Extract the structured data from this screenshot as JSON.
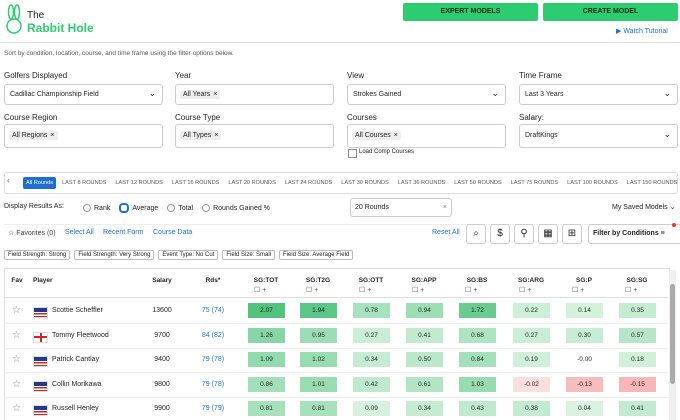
{
  "header": {
    "logo_top": "The",
    "logo_bottom": "Rabbit Hole",
    "buttons": [
      "EXPERT MODELS",
      "CREATE MODEL"
    ],
    "tutorial": "Watch Tutorial"
  },
  "description": "Sort by condition, location, course, and time frame using the filter options below.",
  "filters": [
    {
      "label": "Golfers Displayed",
      "value": "Cadillac Championship Field",
      "kind": "select"
    },
    {
      "label": "Year",
      "value": "All Years",
      "kind": "chip"
    },
    {
      "label": "View",
      "value": "Strokes Gained",
      "kind": "select"
    },
    {
      "label": "Time Frame",
      "value": "Last 3 Years",
      "kind": "select"
    },
    {
      "label": "Course Region",
      "value": "All Regions",
      "kind": "chip"
    },
    {
      "label": "Course Type",
      "value": "All Types",
      "kind": "chip"
    },
    {
      "label": "Courses",
      "value": "All Courses",
      "kind": "chip"
    },
    {
      "label": "Salary:",
      "value": "DraftKings",
      "kind": "select"
    }
  ],
  "load_comp": "Load Comp Courses",
  "round_tabs": [
    {
      "label": "All Rounds",
      "active": true
    },
    {
      "label": "LAST 8 ROUNDS",
      "active": false
    },
    {
      "label": "LAST 12 ROUNDS",
      "active": false
    },
    {
      "label": "LAST 16 ROUNDS",
      "active": false
    },
    {
      "label": "LAST 20 ROUNDS",
      "active": false
    },
    {
      "label": "LAST 24 ROUNDS",
      "active": false
    },
    {
      "label": "LAST 30 ROUNDS",
      "active": false
    },
    {
      "label": "LAST 36 ROUNDS",
      "active": false
    },
    {
      "label": "LAST 50 ROUNDS",
      "active": false
    },
    {
      "label": "LAST 75 ROUNDS",
      "active": false
    },
    {
      "label": "LAST 100 ROUNDS",
      "active": false
    },
    {
      "label": "LAST 150 ROUNDS",
      "active": false
    }
  ],
  "display": {
    "label": "Display Results As:",
    "options": [
      {
        "label": "Rank",
        "selected": false
      },
      {
        "label": "Average",
        "selected": true
      },
      {
        "label": "Total",
        "selected": false
      },
      {
        "label": "Rounds Gained %",
        "selected": false
      }
    ],
    "rounds_input": "20 Rounds",
    "saved_models": "My Saved Models"
  },
  "toolbar": {
    "favorites": "Favorites (0)",
    "links": [
      "Select All",
      "Recent Form",
      "Course Data"
    ],
    "reset": "Reset All",
    "filter_button": "Filter by Conditions"
  },
  "conditions": [
    "Field Strength: Strong",
    "Field Strength: Very Strong",
    "Event Type: No Cut",
    "Field Size: Small",
    "Field Size: Average Field"
  ],
  "table": {
    "columns": [
      "Fav",
      "Player",
      "Salary",
      "Rds*",
      "SG:TOT",
      "SG:T2G",
      "SG:OTT",
      "SG:APP",
      "SG:BS",
      "SG:ARG",
      "SG:P",
      "SG:SG"
    ],
    "rows": [
      {
        "player": "Scottie Scheffler",
        "flag": "us",
        "salary": 13600,
        "rounds": "75 (74)",
        "stats": [
          "2.07",
          "1.94",
          "0.78",
          "0.94",
          "1.72",
          "0.22",
          "0.14",
          "0.35"
        ]
      },
      {
        "player": "Tommy Fleetwood",
        "flag": "england",
        "salary": 9700,
        "rounds": "84 (82)",
        "stats": [
          "1.26",
          "0.95",
          "0.27",
          "0.41",
          "0.68",
          "0.27",
          "0.30",
          "0.57"
        ]
      },
      {
        "player": "Patrick Cantlay",
        "flag": "us",
        "salary": 9400,
        "rounds": "79 (78)",
        "stats": [
          "1.09",
          "1.02",
          "0.34",
          "0.50",
          "0.84",
          "0.19",
          "-0.00",
          "0.18"
        ]
      },
      {
        "player": "Collin Morikawa",
        "flag": "us",
        "salary": 9800,
        "rounds": "79 (78)",
        "stats": [
          "0.86",
          "1.01",
          "0.42",
          "0.61",
          "1.03",
          "-0.02",
          "-0.13",
          "-0.15"
        ]
      },
      {
        "player": "Russell Henley",
        "flag": "us",
        "salary": 9900,
        "rounds": "79 (79)",
        "stats": [
          "0.81",
          "0.81",
          "0.09",
          "0.34",
          "0.43",
          "0.38",
          "0.04",
          "0.41"
        ]
      }
    ]
  }
}
